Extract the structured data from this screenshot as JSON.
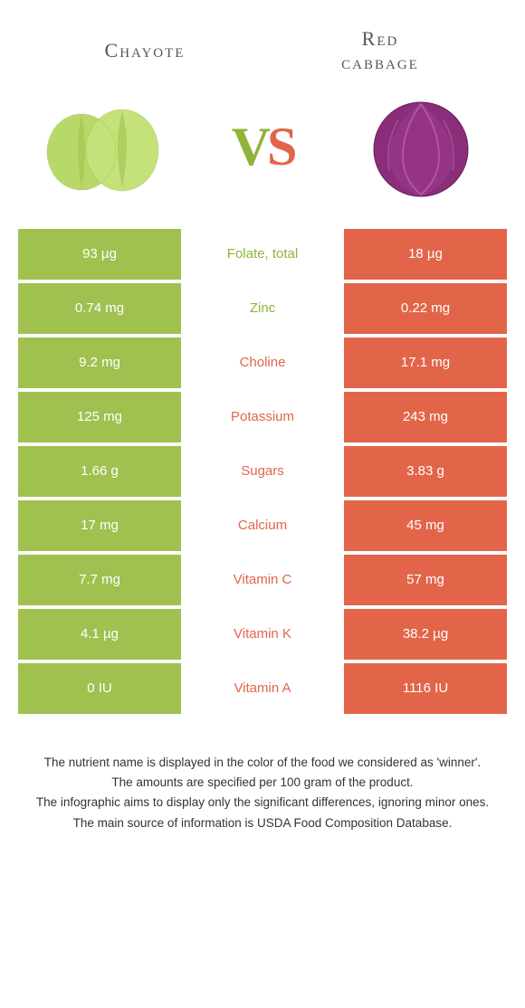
{
  "food1": {
    "name": "Chayote"
  },
  "food2": {
    "name": "Red\ncabbage"
  },
  "colors": {
    "left": "#a0c050",
    "right": "#e2654a",
    "left_text": "#8fb43a",
    "right_text": "#e2654a"
  },
  "rows": [
    {
      "left": "93 µg",
      "label": "Folate, total",
      "right": "18 µg",
      "winner": "left"
    },
    {
      "left": "0.74 mg",
      "label": "Zinc",
      "right": "0.22 mg",
      "winner": "left"
    },
    {
      "left": "9.2 mg",
      "label": "Choline",
      "right": "17.1 mg",
      "winner": "right"
    },
    {
      "left": "125 mg",
      "label": "Potassium",
      "right": "243 mg",
      "winner": "right"
    },
    {
      "left": "1.66 g",
      "label": "Sugars",
      "right": "3.83 g",
      "winner": "right"
    },
    {
      "left": "17 mg",
      "label": "Calcium",
      "right": "45 mg",
      "winner": "right"
    },
    {
      "left": "7.7 mg",
      "label": "Vitamin C",
      "right": "57 mg",
      "winner": "right"
    },
    {
      "left": "4.1 µg",
      "label": "Vitamin K",
      "right": "38.2 µg",
      "winner": "right"
    },
    {
      "left": "0 IU",
      "label": "Vitamin A",
      "right": "1116 IU",
      "winner": "right"
    }
  ],
  "footer": {
    "l1": "The nutrient name is displayed in the color of the food we considered as 'winner'.",
    "l2": "The amounts are specified per 100 gram of the product.",
    "l3": "The infographic aims to display only the significant differences, ignoring minor ones.",
    "l4": "The main source of information is USDA Food Composition Database."
  }
}
